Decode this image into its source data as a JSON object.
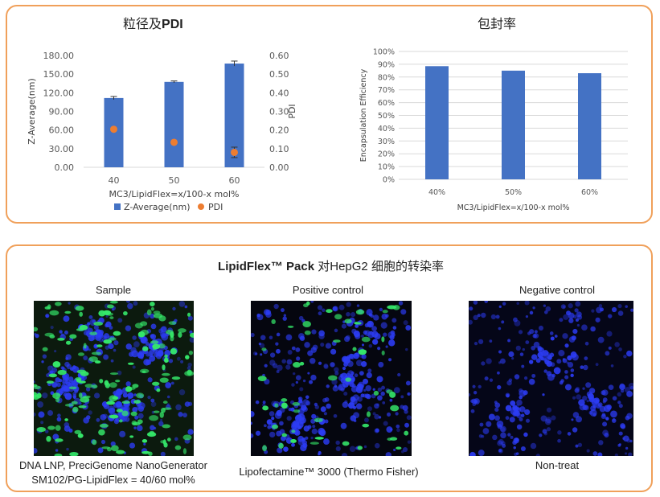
{
  "left_chart_title_cn": "粒径及",
  "left_chart_title_bold": "PDI",
  "right_chart_title": "包封率",
  "bottom": {
    "title_bold": "LipidFlex™ Pack",
    "title_rest": " 对HepG2 细胞的转染率",
    "panels": [
      {
        "label": "Sample",
        "caption1": "DNA LNP, PreciGenome NanoGenerator",
        "caption2": "SM102/PG-LipidFlex = 40/60 mol%"
      },
      {
        "label": "Positive control",
        "caption1": "Lipofectamine™ 3000 (Thermo Fisher)",
        "caption2": ""
      },
      {
        "label": "Negative control",
        "caption1": "Non-treat",
        "caption2": ""
      }
    ]
  },
  "colors": {
    "bar": "#4472c4",
    "pdi": "#ed7d31",
    "border": "#f0a05a",
    "green_cells": "#35e86a",
    "blue_nuclei": "#2c3cf5"
  },
  "chart_data": [
    {
      "type": "bar",
      "title": "粒径及PDI",
      "categories": [
        "40",
        "50",
        "60"
      ],
      "xlabel": "MC3/LipidFlex=x/100-x mol%",
      "ylabel": "Z-Average(nm)",
      "y2label": "PDI",
      "ylim": [
        0,
        180
      ],
      "y2lim": [
        0,
        0.6
      ],
      "yticks": [
        "0.00",
        "30.00",
        "60.00",
        "90.00",
        "120.00",
        "150.00",
        "180.00"
      ],
      "y2ticks": [
        "0.00",
        "0.10",
        "0.20",
        "0.30",
        "0.40",
        "0.50",
        "0.60"
      ],
      "series": [
        {
          "name": "Z-Average(nm)",
          "kind": "bar",
          "values": [
            111.5,
            137.5,
            167.0
          ],
          "errors": [
            2.5,
            1.5,
            4.0
          ]
        },
        {
          "name": "PDI",
          "kind": "scatter",
          "axis": "y2",
          "values": [
            0.204,
            0.134,
            0.08
          ],
          "errors": [
            0,
            0,
            0.028
          ]
        }
      ],
      "legend": "bottom"
    },
    {
      "type": "bar",
      "title": "包封率",
      "categories": [
        "40%",
        "50%",
        "60%"
      ],
      "xlabel": "MC3/LipidFlex=x/100-x mol%",
      "ylabel": "Encapsulation Efficiency",
      "ylim": [
        0,
        100
      ],
      "yticks": [
        "0%",
        "10%",
        "20%",
        "30%",
        "40%",
        "50%",
        "60%",
        "70%",
        "80%",
        "90%",
        "100%"
      ],
      "values": [
        88.5,
        85.0,
        83.0
      ],
      "grid": true
    }
  ]
}
